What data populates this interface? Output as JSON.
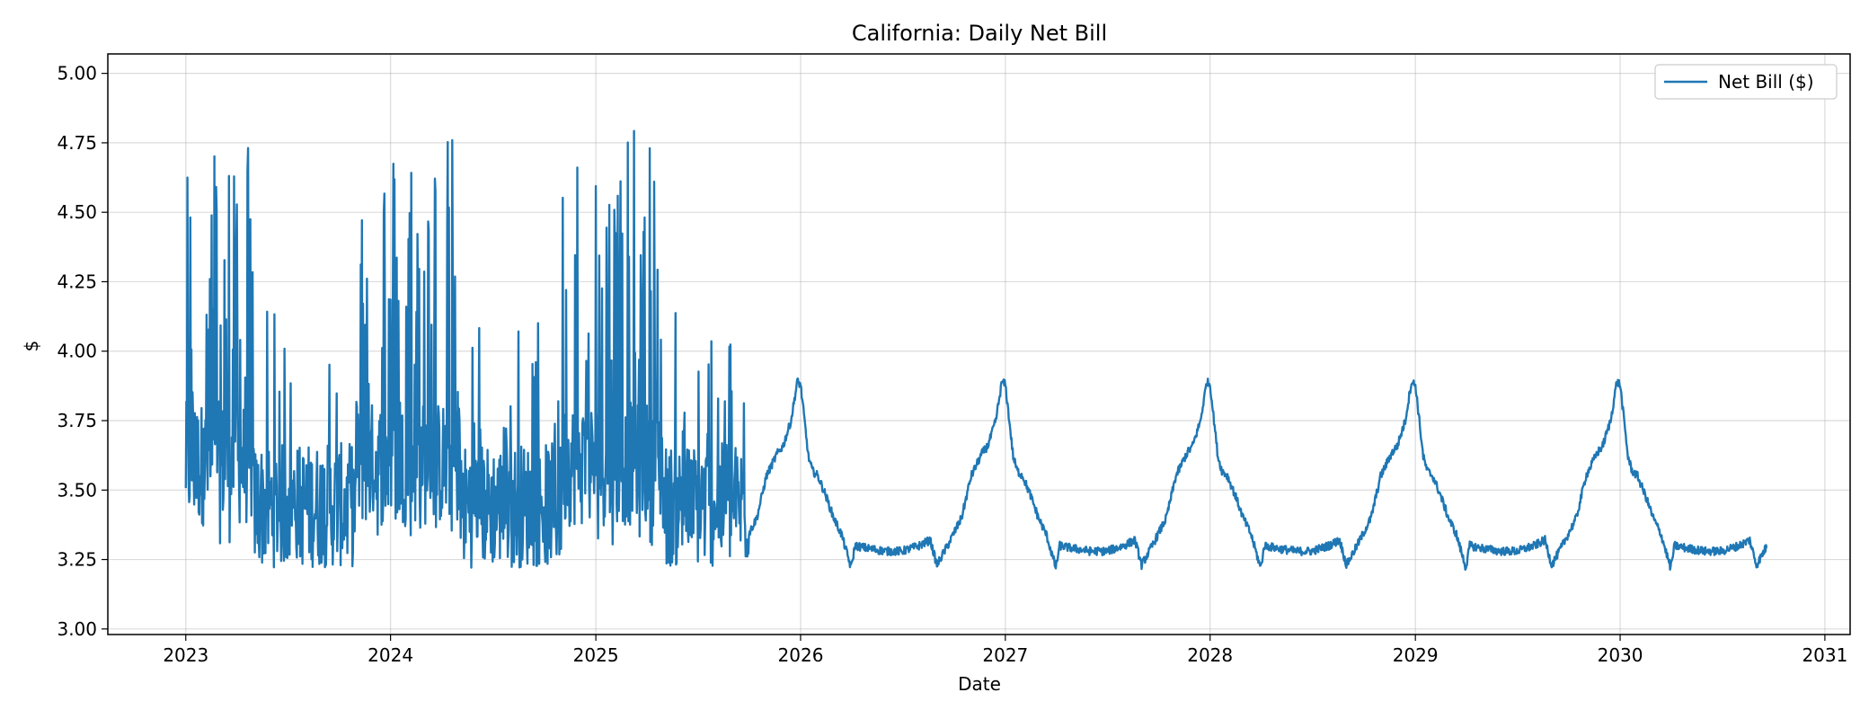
{
  "chart_data": {
    "type": "line",
    "title": "California: Daily Net Bill",
    "xlabel": "Date",
    "ylabel": "$",
    "xlim": [
      "2022-08-15",
      "2031-02-15"
    ],
    "ylim": [
      2.98,
      5.07
    ],
    "x_ticks": [
      "2023",
      "2024",
      "2025",
      "2026",
      "2027",
      "2028",
      "2029",
      "2030",
      "2031"
    ],
    "y_ticks": [
      "3.00",
      "3.25",
      "3.50",
      "3.75",
      "4.00",
      "4.25",
      "4.50",
      "4.75",
      "5.00"
    ],
    "grid": true,
    "legend_position": "top-right",
    "color": "#1f77b4",
    "series": [
      {
        "name": "Net Bill ($)",
        "x_start": "2023-01-01",
        "x_end": "2030-09-20",
        "x_step": "1 day",
        "points_count": 2820,
        "historical_until": "2025-09-30",
        "forecast_annual_profile": [
          [
            "01-01",
            3.88
          ],
          [
            "01-08",
            3.75
          ],
          [
            "01-15",
            3.62
          ],
          [
            "01-22",
            3.57
          ],
          [
            "02-01",
            3.55
          ],
          [
            "02-15",
            3.48
          ],
          [
            "03-01",
            3.4
          ],
          [
            "03-15",
            3.34
          ],
          [
            "04-01",
            3.22
          ],
          [
            "04-08",
            3.3
          ],
          [
            "05-01",
            3.29
          ],
          [
            "06-01",
            3.28
          ],
          [
            "07-01",
            3.28
          ],
          [
            "08-01",
            3.3
          ],
          [
            "08-20",
            3.32
          ],
          [
            "09-01",
            3.23
          ],
          [
            "09-20",
            3.3
          ],
          [
            "10-15",
            3.4
          ],
          [
            "11-01",
            3.55
          ],
          [
            "11-20",
            3.63
          ],
          [
            "12-01",
            3.66
          ],
          [
            "12-15",
            3.75
          ],
          [
            "12-26",
            3.89
          ]
        ],
        "historical_range": {
          "min": 3.09,
          "max": 4.98
        }
      }
    ]
  }
}
